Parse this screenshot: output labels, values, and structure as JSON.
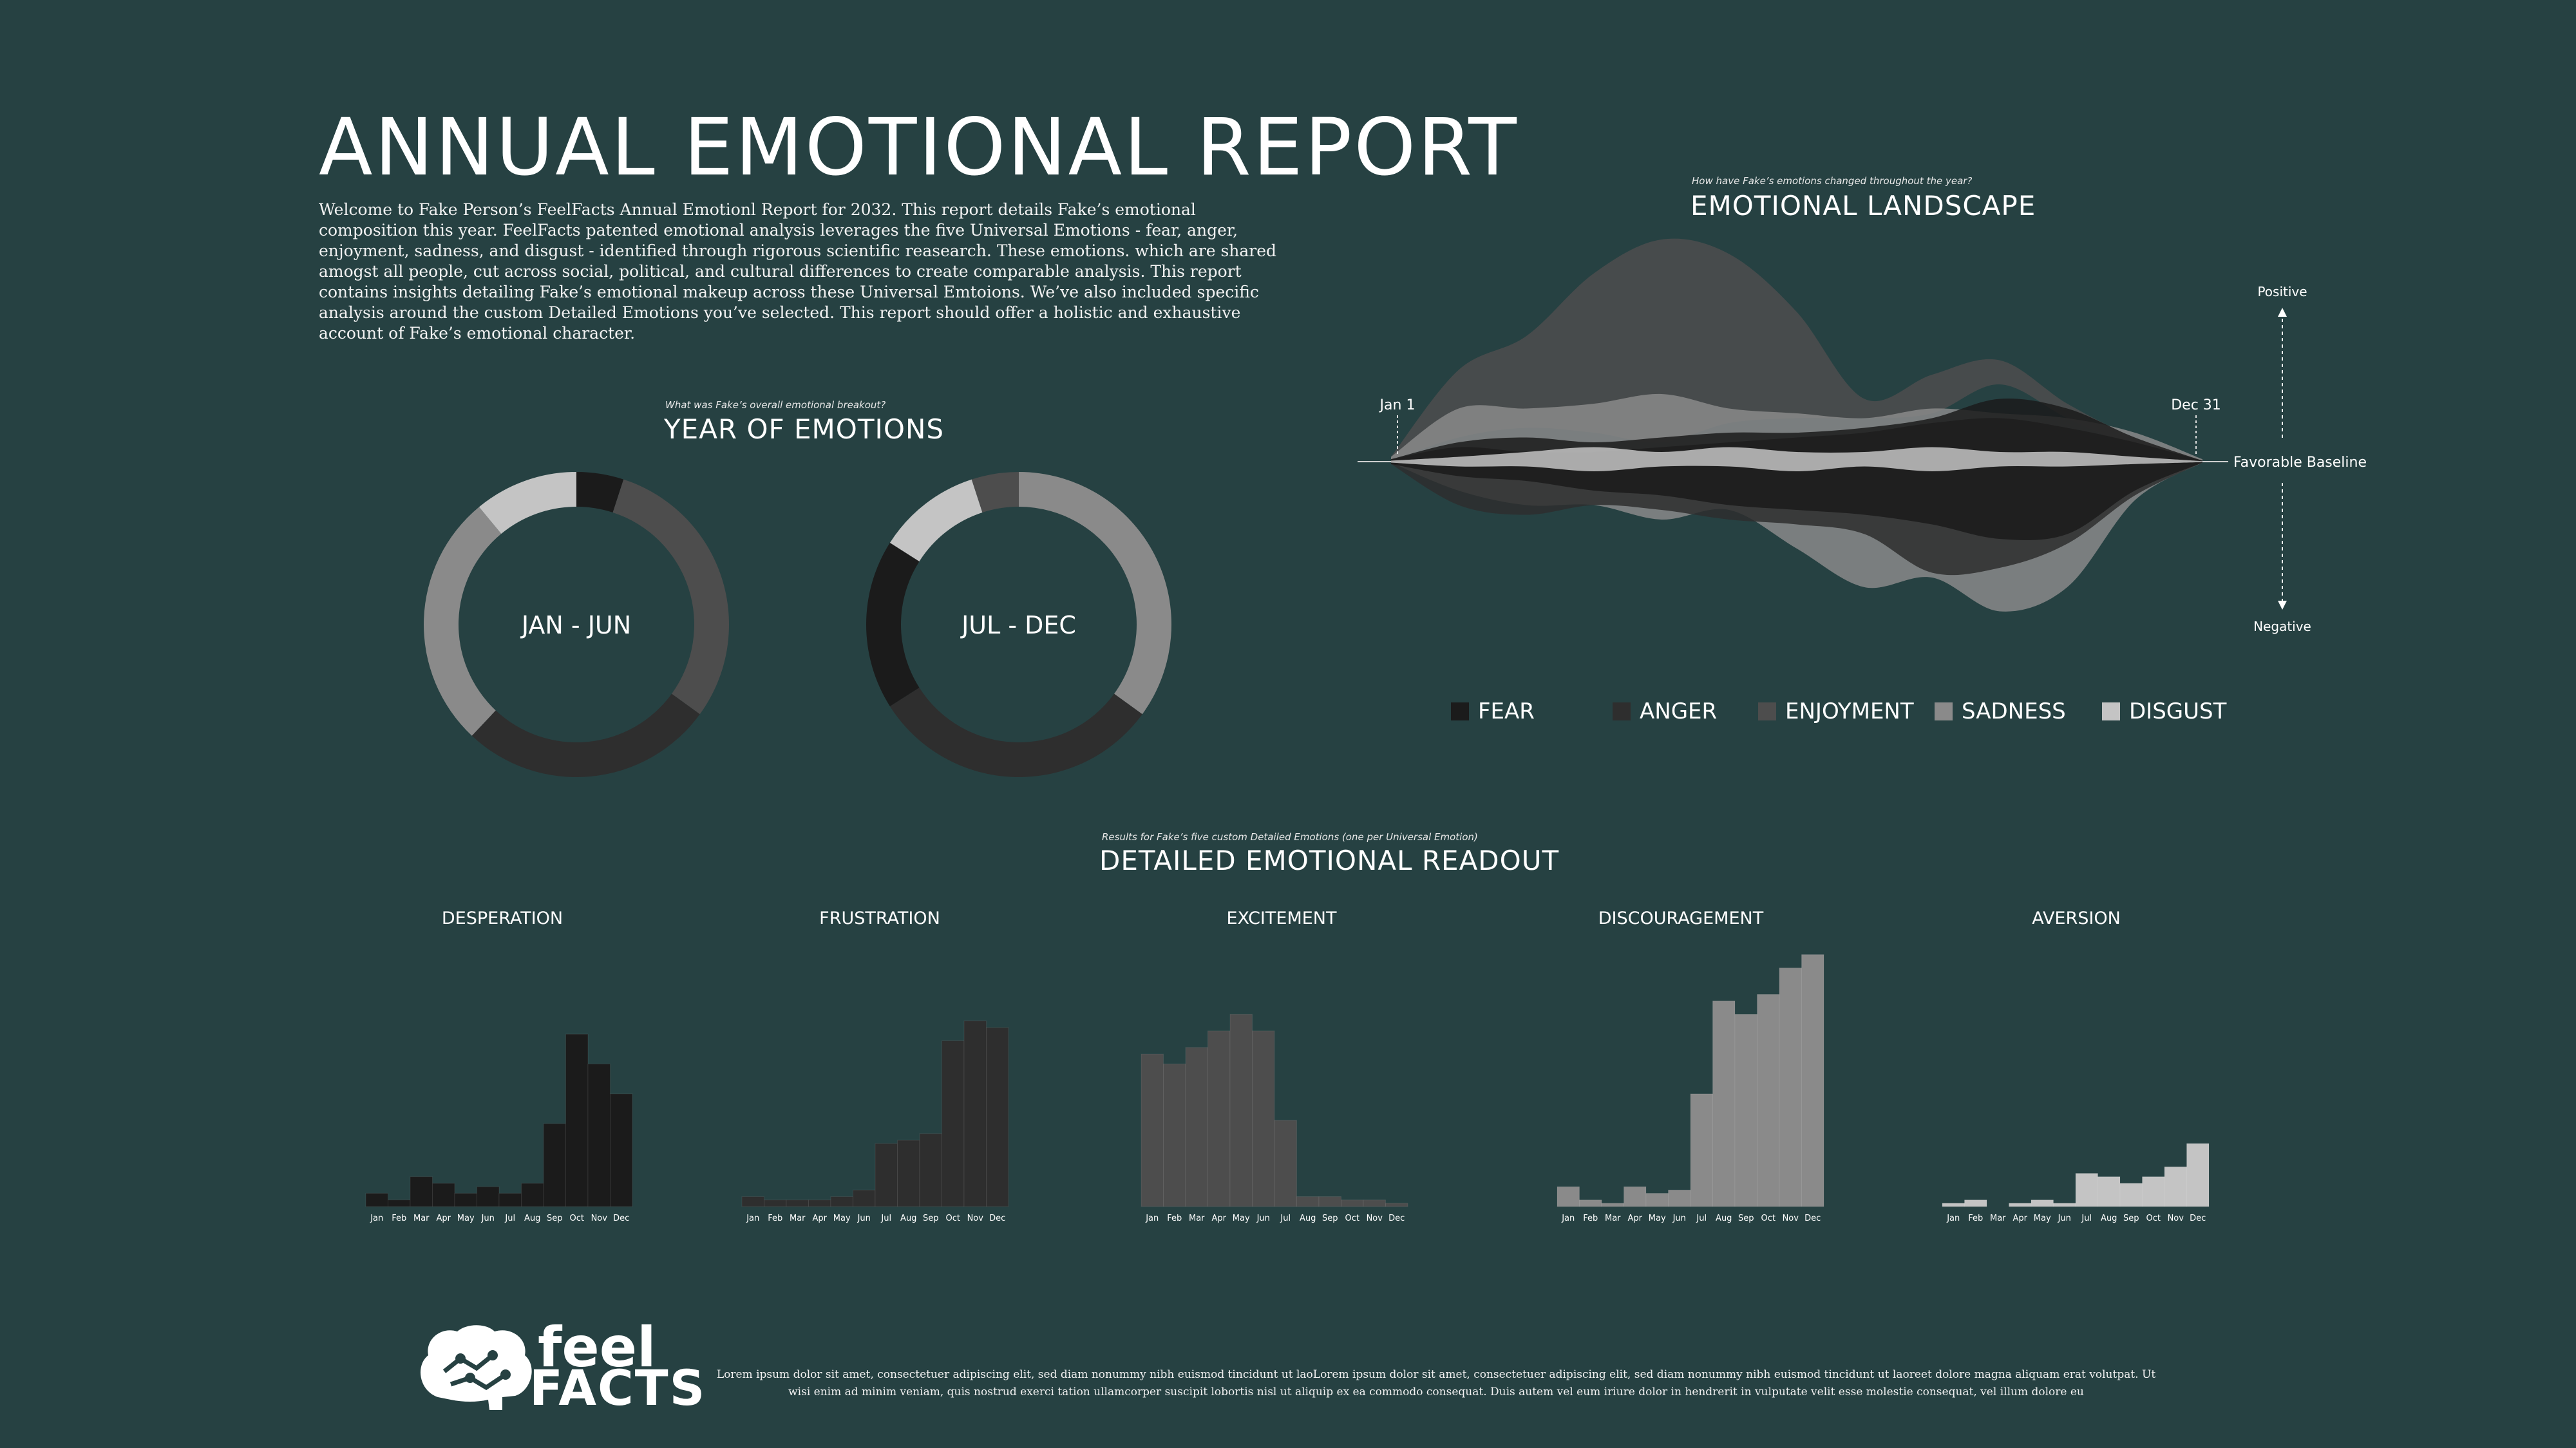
{
  "header": {
    "title": "ANNUAL EMOTIONAL REPORT",
    "intro": "Welcome to Fake Person’s FeelFacts Annual Emotionl Report for 2032. This report details Fake’s emotional composition this year. FeelFacts patented emotional analysis leverages the five Universal Emotions - fear, anger, enjoyment, sadness, and disgust - identified through rigorous scientific reasearch. These emotions. which are shared amogst all people, cut across social, political, and cultural differences to create comparable analysis. This report contains insights detailing Fake’s emotional makeup across these Universal Emtoions. We’ve also included specific analysis around the custom Detailed Emotions you’ve selected. This report should offer a holistic and exhaustive account of Fake’s emotional character."
  },
  "year_section": {
    "kicker": "What was Fake’s overall emotional breakout?",
    "heading": "YEAR OF EMOTIONS"
  },
  "landscape_section": {
    "kicker": "How have Fake’s emotions changed throughout the year?",
    "heading": "EMOTIONAL LANDSCAPE"
  },
  "detailed_section": {
    "kicker": "Results for Fake’s five custom Detailed Emotions (one per Universal Emotion)",
    "heading": "DETAILED EMOTIONAL READOUT"
  },
  "colors": {
    "background": "#264142",
    "fear": "#1b1b1b",
    "anger": "#2e2e2e",
    "enjoyment": "#4d4d4d",
    "sadness": "#8a8a8a",
    "disgust": "#c4c4c4"
  },
  "chart_data": [
    {
      "type": "pie",
      "variant": "donut",
      "center_label": "JAN - JUN",
      "slices": [
        {
          "label": "FEAR",
          "value": 5
        },
        {
          "label": "ENJOYMENT",
          "value": 30
        },
        {
          "label": "ANGER",
          "value": 27
        },
        {
          "label": "SADNESS",
          "value": 27
        },
        {
          "label": "DISGUST",
          "value": 11
        }
      ]
    },
    {
      "type": "pie",
      "variant": "donut",
      "center_label": "JUL - DEC",
      "slices": [
        {
          "label": "SADNESS",
          "value": 35
        },
        {
          "label": "ANGER",
          "value": 31
        },
        {
          "label": "FEAR",
          "value": 18
        },
        {
          "label": "DISGUST",
          "value": 11
        },
        {
          "label": "ENJOYMENT",
          "value": 5
        }
      ]
    },
    {
      "type": "area",
      "variant": "streamgraph",
      "x_start_label": "Jan 1",
      "x_end_label": "Dec 31",
      "baseline_label": "Favorable Baseline",
      "positive_label": "Positive",
      "negative_label": "Negative",
      "legend": [
        "FEAR",
        "ANGER",
        "ENJOYMENT",
        "SADNESS",
        "DISGUST"
      ],
      "legend_placement": "bottom",
      "x": [
        0,
        1,
        2,
        3,
        4,
        5,
        6,
        7,
        8,
        9,
        10,
        11,
        12
      ],
      "series": [
        {
          "name": "ENJOYMENT",
          "upper": [
            0.1,
            1.9,
            2.6,
            3.9,
            4.6,
            4.3,
            3.1,
            1.3,
            1.8,
            2.1,
            1.2,
            0.5,
            0.05
          ],
          "lower": [
            0.02,
            0.5,
            0.7,
            0.6,
            0.4,
            0.8,
            0.9,
            0.9,
            1.0,
            1.6,
            0.9,
            0.3,
            0.02
          ]
        },
        {
          "name": "SADNESS",
          "upper": [
            0.1,
            1.1,
            1.1,
            1.2,
            1.4,
            1.1,
            1.0,
            0.9,
            1.1,
            1.0,
            0.9,
            0.6,
            0.05
          ],
          "lower": [
            -0.02,
            -0.6,
            -0.9,
            -0.9,
            -1.2,
            -1.0,
            -1.8,
            -2.6,
            -2.4,
            -3.1,
            -2.6,
            -0.8,
            -0.02
          ]
        },
        {
          "name": "ANGER",
          "upper": [
            0.05,
            0.3,
            0.2,
            0.2,
            0.3,
            0.4,
            0.5,
            0.6,
            0.8,
            0.9,
            0.7,
            0.4,
            0.02
          ],
          "lower": [
            -0.05,
            -0.9,
            -1.1,
            -0.9,
            -1.0,
            -1.2,
            -1.3,
            -1.5,
            -2.3,
            -2.2,
            -1.7,
            -0.7,
            -0.02
          ]
        },
        {
          "name": "FEAR",
          "upper": [
            0.05,
            0.4,
            0.5,
            0.4,
            0.5,
            0.6,
            0.6,
            0.7,
            0.9,
            1.3,
            1.1,
            0.5,
            0.02
          ],
          "lower": [
            -0.05,
            -0.3,
            -0.4,
            -0.6,
            -0.7,
            -0.9,
            -1.0,
            -1.1,
            -1.3,
            -1.6,
            -1.5,
            -0.6,
            -0.02
          ]
        },
        {
          "name": "DISGUST",
          "upper": [
            0.02,
            0.1,
            0.2,
            0.3,
            0.2,
            0.3,
            0.2,
            0.2,
            0.3,
            0.2,
            0.2,
            0.1,
            0.01
          ],
          "lower": [
            -0.02,
            -0.1,
            -0.1,
            -0.2,
            -0.1,
            -0.1,
            -0.2,
            -0.1,
            -0.2,
            -0.1,
            -0.1,
            -0.05,
            -0.01
          ]
        }
      ]
    },
    {
      "type": "bar",
      "title": "DESPERATION",
      "categories": [
        "Jan",
        "Feb",
        "Mar",
        "Apr",
        "May",
        "Jun",
        "Jul",
        "Aug",
        "Sep",
        "Oct",
        "Nov",
        "Dec"
      ],
      "values": [
        4,
        2,
        9,
        7,
        4,
        6,
        4,
        7,
        25,
        52,
        43,
        34
      ],
      "color": "#1b1b1b"
    },
    {
      "type": "bar",
      "title": "FRUSTRATION",
      "categories": [
        "Jan",
        "Feb",
        "Mar",
        "Apr",
        "May",
        "Jun",
        "Jul",
        "Aug",
        "Sep",
        "Oct",
        "Nov",
        "Dec"
      ],
      "values": [
        3,
        2,
        2,
        2,
        3,
        5,
        19,
        20,
        22,
        50,
        56,
        54
      ],
      "color": "#2e2e2e"
    },
    {
      "type": "bar",
      "title": "EXCITEMENT",
      "categories": [
        "Jan",
        "Feb",
        "Mar",
        "Apr",
        "May",
        "Jun",
        "Jul",
        "Aug",
        "Sep",
        "Oct",
        "Nov",
        "Dec"
      ],
      "values": [
        46,
        43,
        48,
        53,
        58,
        53,
        26,
        3,
        3,
        2,
        2,
        1
      ],
      "color": "#4d4d4d"
    },
    {
      "type": "bar",
      "title": "DISCOURAGEMENT",
      "categories": [
        "Jan",
        "Feb",
        "Mar",
        "Apr",
        "May",
        "Jun",
        "Jul",
        "Aug",
        "Sep",
        "Oct",
        "Nov",
        "Dec"
      ],
      "values": [
        6,
        2,
        1,
        6,
        4,
        5,
        34,
        62,
        58,
        64,
        72,
        76
      ],
      "color": "#8a8a8a"
    },
    {
      "type": "bar",
      "title": "AVERSION",
      "categories": [
        "Jan",
        "Feb",
        "Mar",
        "Apr",
        "May",
        "Jun",
        "Jul",
        "Aug",
        "Sep",
        "Oct",
        "Nov",
        "Dec"
      ],
      "values": [
        1,
        2,
        0,
        1,
        2,
        1,
        10,
        9,
        7,
        9,
        12,
        19
      ],
      "color": "#c4c4c4"
    }
  ],
  "footer": {
    "logo_feel": "feel",
    "logo_facts": "FACTS",
    "text": "Lorem ipsum dolor sit amet, consectetuer adipiscing elit, sed diam nonummy nibh euismod tincidunt ut laoLorem ipsum dolor sit amet, consectetuer adipiscing elit, sed diam nonummy nibh euismod tincidunt ut laoreet dolore magna aliquam erat volutpat. Ut wisi enim ad minim veniam, quis nostrud exerci tation ullamcorper suscipit lobortis nisl ut aliquip ex ea commodo consequat. Duis autem vel eum iriure dolor in hendrerit in vulputate velit esse molestie consequat, vel illum dolore eu"
  }
}
